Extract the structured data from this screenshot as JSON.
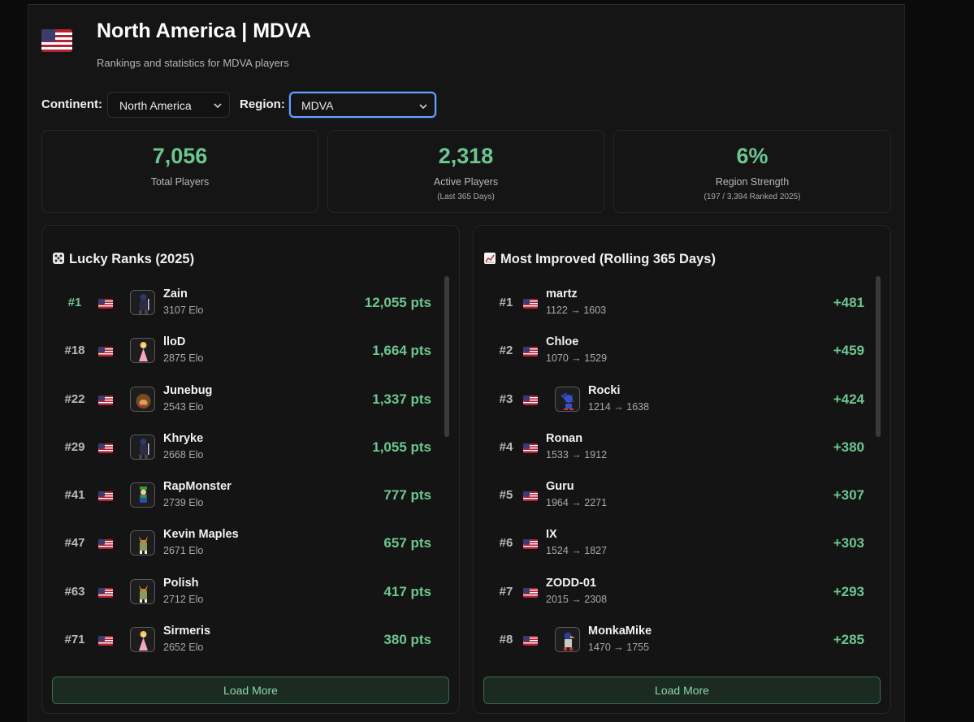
{
  "header": {
    "title": "North America | MDVA",
    "subtitle": "Rankings and statistics for MDVA players"
  },
  "filters": {
    "continent_label": "Continent:",
    "continent_value": "North America",
    "region_label": "Region:",
    "region_value": "MDVA"
  },
  "stats": [
    {
      "value": "7,056",
      "label": "Total Players",
      "sub": ""
    },
    {
      "value": "2,318",
      "label": "Active Players",
      "sub": "(Last 365 Days)"
    },
    {
      "value": "6%",
      "label": "Region Strength",
      "sub": "(197 / 3,394 Ranked 2025)"
    }
  ],
  "lucky": {
    "title": "Lucky Ranks (2025)",
    "icon": "dice-icon",
    "load_more": "Load More",
    "rows": [
      {
        "rank": "#1",
        "name": "Zain",
        "sub": "3107 Elo",
        "value": "12,055 pts",
        "char": "marth"
      },
      {
        "rank": "#18",
        "name": "lloD",
        "sub": "2875 Elo",
        "value": "1,664 pts",
        "char": "peach"
      },
      {
        "rank": "#22",
        "name": "Junebug",
        "sub": "2543 Elo",
        "value": "1,337 pts",
        "char": "dk"
      },
      {
        "rank": "#29",
        "name": "Khryke",
        "sub": "2668 Elo",
        "value": "1,055 pts",
        "char": "marth"
      },
      {
        "rank": "#41",
        "name": "RapMonster",
        "sub": "2739 Elo",
        "value": "777 pts",
        "char": "luigi"
      },
      {
        "rank": "#47",
        "name": "Kevin Maples",
        "sub": "2671 Elo",
        "value": "657 pts",
        "char": "fox"
      },
      {
        "rank": "#63",
        "name": "Polish",
        "sub": "2712 Elo",
        "value": "417 pts",
        "char": "fox"
      },
      {
        "rank": "#71",
        "name": "Sirmeris",
        "sub": "2652 Elo",
        "value": "380 pts",
        "char": "peach"
      }
    ]
  },
  "improved": {
    "title": "Most Improved (Rolling 365 Days)",
    "icon": "chart-up-icon",
    "load_more": "Load More",
    "rows": [
      {
        "rank": "#1",
        "name": "martz",
        "sub": "1122 → 1603",
        "value": "+481",
        "char": ""
      },
      {
        "rank": "#2",
        "name": "Chloe",
        "sub": "1070 → 1529",
        "value": "+459",
        "char": ""
      },
      {
        "rank": "#3",
        "name": "Rocki",
        "sub": "1214 → 1638",
        "value": "+424",
        "char": "sonic"
      },
      {
        "rank": "#4",
        "name": "Ronan",
        "sub": "1533 → 1912",
        "value": "+380",
        "char": ""
      },
      {
        "rank": "#5",
        "name": "Guru",
        "sub": "1964 → 2271",
        "value": "+307",
        "char": ""
      },
      {
        "rank": "#6",
        "name": "IX",
        "sub": "1524 → 1827",
        "value": "+303",
        "char": ""
      },
      {
        "rank": "#7",
        "name": "ZODD-01",
        "sub": "2015 → 2308",
        "value": "+293",
        "char": ""
      },
      {
        "rank": "#8",
        "name": "MonkaMike",
        "sub": "1470 → 1755",
        "value": "+285",
        "char": "falco"
      }
    ]
  },
  "colors": {
    "accent": "#6cc690",
    "focus": "#6aa0ff",
    "bg": "#151515"
  }
}
